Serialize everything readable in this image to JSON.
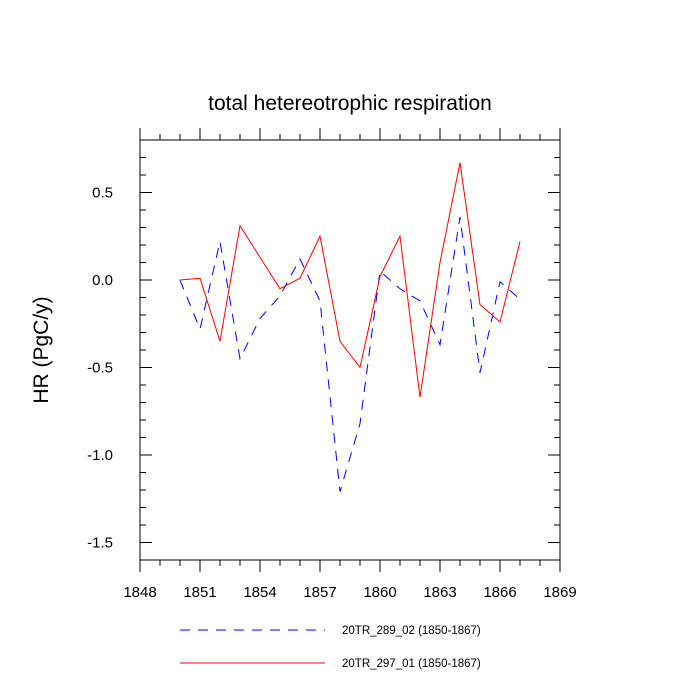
{
  "chart_data": {
    "type": "line",
    "title": "total hetereotrophic respiration",
    "xlabel": "",
    "ylabel": "HR  (PgC/y)",
    "xlim": [
      1848,
      1869
    ],
    "ylim": [
      -1.6,
      0.8
    ],
    "xticks": [
      1848,
      1851,
      1854,
      1857,
      1860,
      1863,
      1866,
      1869
    ],
    "yticks": [
      -1.5,
      -1.0,
      -0.5,
      0.0,
      0.5
    ],
    "ytick_labels": [
      "-1.5",
      "-1.0",
      "-0.5",
      "0.0",
      "0.5"
    ],
    "x": [
      1850,
      1851,
      1852,
      1853,
      1854,
      1855,
      1856,
      1857,
      1858,
      1859,
      1860,
      1861,
      1862,
      1863,
      1864,
      1865,
      1866,
      1867
    ],
    "series": [
      {
        "name": "20TR_289_02 (1850-1867)",
        "color": "#0000ff",
        "style": "dashed",
        "values": [
          0.0,
          -0.28,
          0.22,
          -0.45,
          -0.22,
          -0.09,
          0.12,
          -0.12,
          -1.21,
          -0.82,
          0.05,
          -0.05,
          -0.12,
          -0.37,
          0.36,
          -0.53,
          -0.01,
          -0.11
        ]
      },
      {
        "name": "20TR_297_01 (1850-1867)",
        "color": "#ff0000",
        "style": "solid",
        "values": [
          0.0,
          0.01,
          -0.35,
          0.31,
          0.13,
          -0.05,
          0.01,
          0.25,
          -0.35,
          -0.5,
          0.02,
          0.25,
          -0.67,
          0.1,
          0.67,
          -0.14,
          -0.24,
          0.22
        ]
      }
    ],
    "legend": [
      {
        "label": "20TR_289_02 (1850-1867)",
        "color": "#0000ff",
        "style": "dashed"
      },
      {
        "label": "20TR_297_01 (1850-1867)",
        "color": "#ff0000",
        "style": "solid"
      }
    ],
    "legend_position": "bottom",
    "grid": false
  }
}
